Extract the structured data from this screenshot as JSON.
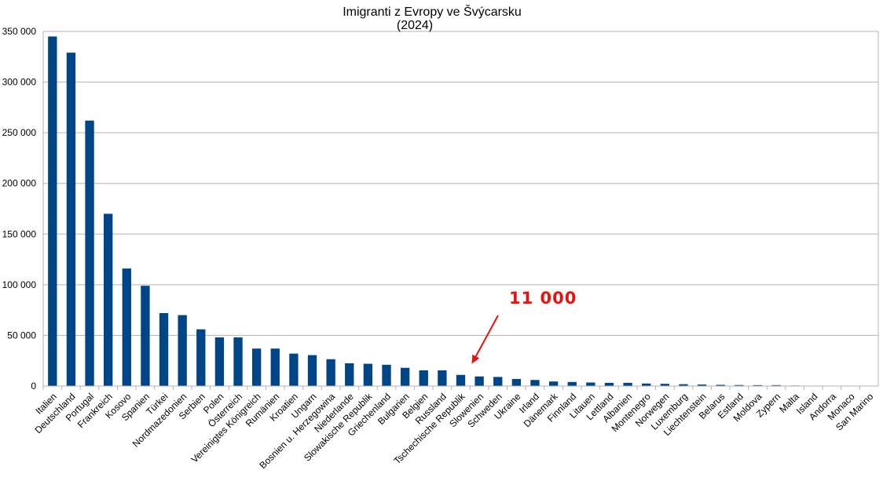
{
  "chart_data": {
    "type": "bar",
    "title": "Imigranti z Evropy ve Švýcarsku",
    "subtitle": "(2024)",
    "xlabel": "",
    "ylabel": "",
    "ylim": [
      0,
      350000
    ],
    "yticks": [
      0,
      50000,
      100000,
      150000,
      200000,
      250000,
      300000,
      350000
    ],
    "ytick_labels": [
      "0",
      "50 000",
      "100 000",
      "150 000",
      "200 000",
      "250 000",
      "300 000",
      "350 000"
    ],
    "grid": true,
    "legend": "none",
    "categories": [
      "Italien",
      "Deutschland",
      "Portugal",
      "Frankreich",
      "Kosovo",
      "Spanien",
      "Türkei",
      "Nordmazedonien",
      "Serbien",
      "Polen",
      "Österreich",
      "Vereinigtes Königreich",
      "Rumänien",
      "Kroatien",
      "Ungarn",
      "Bosnien u. Herzegowina",
      "Niederlande",
      "Slowakische Republik",
      "Griechenland",
      "Bulgarien",
      "Belgien",
      "Russland",
      "Tschechische Republik",
      "Slowenien",
      "Schweden",
      "Ukraine",
      "Irland",
      "Dänemark",
      "Finnland",
      "Litauen",
      "Lettland",
      "Albanien",
      "Montenegro",
      "Norwegen",
      "Luxemburg",
      "Liechtenstein",
      "Belarus",
      "Estland",
      "Moldova",
      "Zypern",
      "Malta",
      "Island",
      "Andorra",
      "Monaco",
      "San Marino"
    ],
    "values": [
      345000,
      329000,
      262000,
      170000,
      116000,
      99000,
      72000,
      70000,
      56000,
      48000,
      48000,
      37000,
      37000,
      32000,
      30500,
      26500,
      22500,
      22000,
      21000,
      18000,
      15500,
      15500,
      11000,
      9500,
      9000,
      7000,
      6000,
      4500,
      4000,
      3500,
      3200,
      3200,
      2500,
      2200,
      1800,
      1500,
      1200,
      1000,
      900,
      900,
      500,
      400,
      200,
      100,
      100
    ],
    "bar_color": "#004586",
    "annotation": {
      "text": "11 000",
      "color": "#e8120f",
      "target_category": "Tschechische Republik"
    }
  }
}
